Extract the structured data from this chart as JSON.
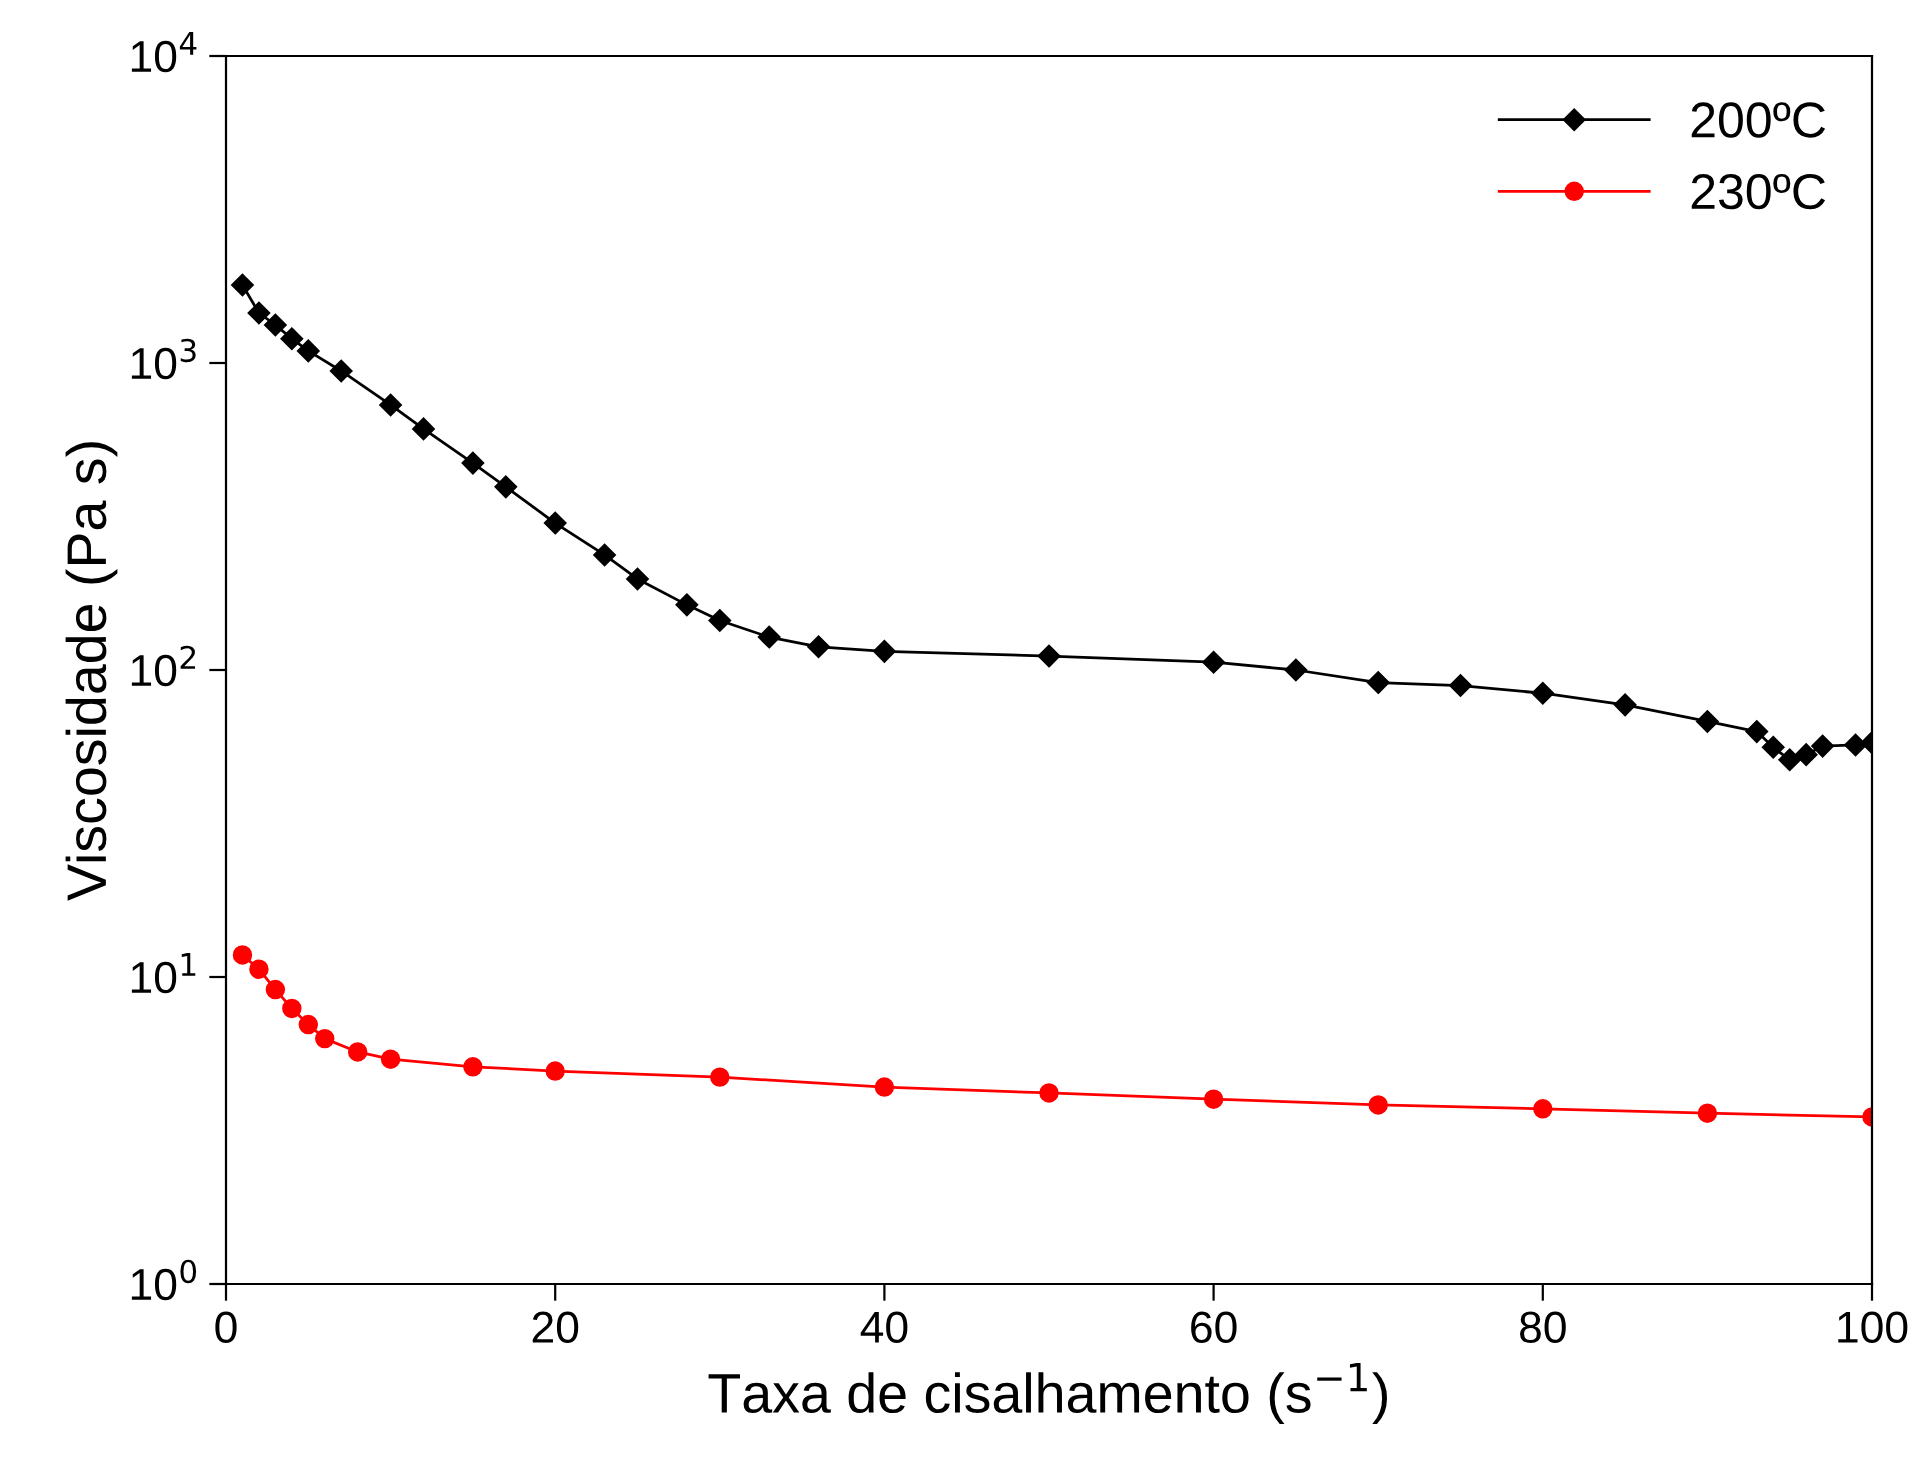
{
  "chart_data": {
    "type": "line",
    "xlabel": "Taxa de cisalhamento (s$^{−1}$)",
    "ylabel": "Viscosidade (Pa s)",
    "log": "y",
    "xlim": [
      0,
      100
    ],
    "xticks": [
      0,
      20,
      40,
      60,
      80,
      100
    ],
    "ylim": [
      1,
      10000
    ],
    "yticks": [
      {
        "value": 1,
        "label": "10$^{0}$"
      },
      {
        "value": 10,
        "label": "10$^{1}$"
      },
      {
        "value": 100,
        "label": "10$^{2}$"
      },
      {
        "value": 1000,
        "label": "10$^{3}$"
      },
      {
        "value": 10000,
        "label": "10$^{4}$"
      }
    ],
    "grid": false,
    "legend": "top right",
    "line_style": "solid",
    "series": [
      {
        "name": "200ºC",
        "color": "#000000",
        "marker": "diamond",
        "x": [
          1,
          2,
          3,
          4,
          5,
          7,
          10,
          12,
          15,
          17,
          20,
          23,
          25,
          28,
          30,
          33,
          36,
          40,
          50,
          60,
          65,
          70,
          75,
          80,
          85,
          90,
          93,
          94,
          95,
          96,
          97,
          99,
          100
        ],
        "values": [
          1795,
          1455,
          1330,
          1200,
          1095,
          942,
          730,
          610,
          472,
          395,
          301,
          237,
          198,
          163,
          145,
          128,
          119,
          115,
          111,
          106,
          100,
          91,
          89,
          84,
          77,
          68,
          63,
          56,
          51,
          53,
          56.5,
          57,
          58
        ]
      },
      {
        "name": "230ºC",
        "color": "#ff0000",
        "marker": "circle",
        "x": [
          1,
          2,
          3,
          4,
          5,
          6,
          8,
          10,
          15,
          20,
          30,
          40,
          50,
          60,
          70,
          80,
          90,
          100
        ],
        "values": [
          11.8,
          10.6,
          9.1,
          7.9,
          7.0,
          6.3,
          5.7,
          5.4,
          5.1,
          4.94,
          4.72,
          4.38,
          4.19,
          4.0,
          3.83,
          3.72,
          3.6,
          3.5
        ]
      }
    ]
  }
}
